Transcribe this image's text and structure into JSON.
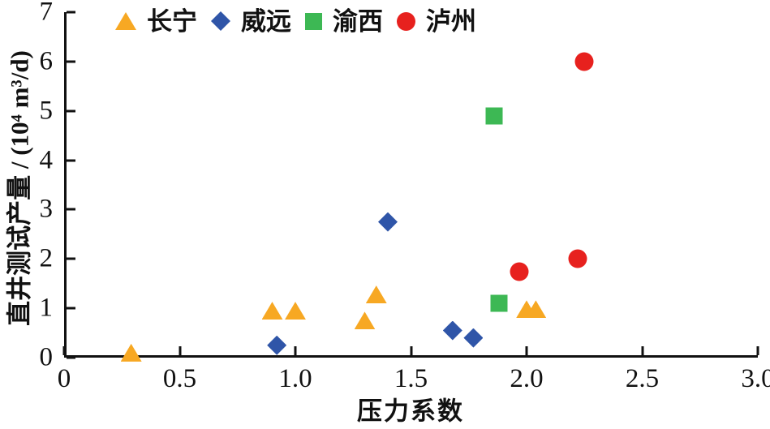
{
  "figure": {
    "background": "#ffffff",
    "axis_color": "#111111"
  },
  "chart_data": {
    "type": "scatter",
    "title": "",
    "xlabel": "压力系数",
    "ylabel": "直井测试产量 / (10⁴ m³/d)",
    "xlim": [
      0,
      3
    ],
    "ylim": [
      0,
      7
    ],
    "xticks": [
      0,
      0.5,
      1,
      1.5,
      2,
      2.5,
      3
    ],
    "xtick_labels": [
      "0",
      "0.5",
      "1.0",
      "1.5",
      "2.0",
      "2.5",
      "3.0"
    ],
    "yticks": [
      0,
      1,
      2,
      3,
      4,
      5,
      6,
      7
    ],
    "ytick_labels": [
      "0",
      "1",
      "2",
      "3",
      "4",
      "5",
      "6",
      "7"
    ],
    "grid": false,
    "legend_position": "top",
    "series": [
      {
        "name": "长宁",
        "marker": "triangle",
        "color": "#F7A823",
        "points": [
          [
            0.29,
            0.1
          ],
          [
            0.9,
            0.95
          ],
          [
            1.0,
            0.95
          ],
          [
            1.3,
            0.75
          ],
          [
            1.35,
            1.28
          ],
          [
            2.0,
            0.98
          ],
          [
            2.04,
            0.98
          ]
        ]
      },
      {
        "name": "威远",
        "marker": "diamond",
        "color": "#2F55A8",
        "points": [
          [
            0.92,
            0.25
          ],
          [
            1.4,
            2.75
          ],
          [
            1.68,
            0.55
          ],
          [
            1.77,
            0.4
          ]
        ]
      },
      {
        "name": "渝西",
        "marker": "square",
        "color": "#3DB854",
        "points": [
          [
            1.86,
            4.9
          ],
          [
            1.88,
            1.1
          ]
        ]
      },
      {
        "name": "泸州",
        "marker": "circle",
        "color": "#E7211E",
        "points": [
          [
            1.97,
            1.75
          ],
          [
            2.22,
            2.0
          ],
          [
            2.25,
            6.0
          ]
        ]
      }
    ]
  }
}
